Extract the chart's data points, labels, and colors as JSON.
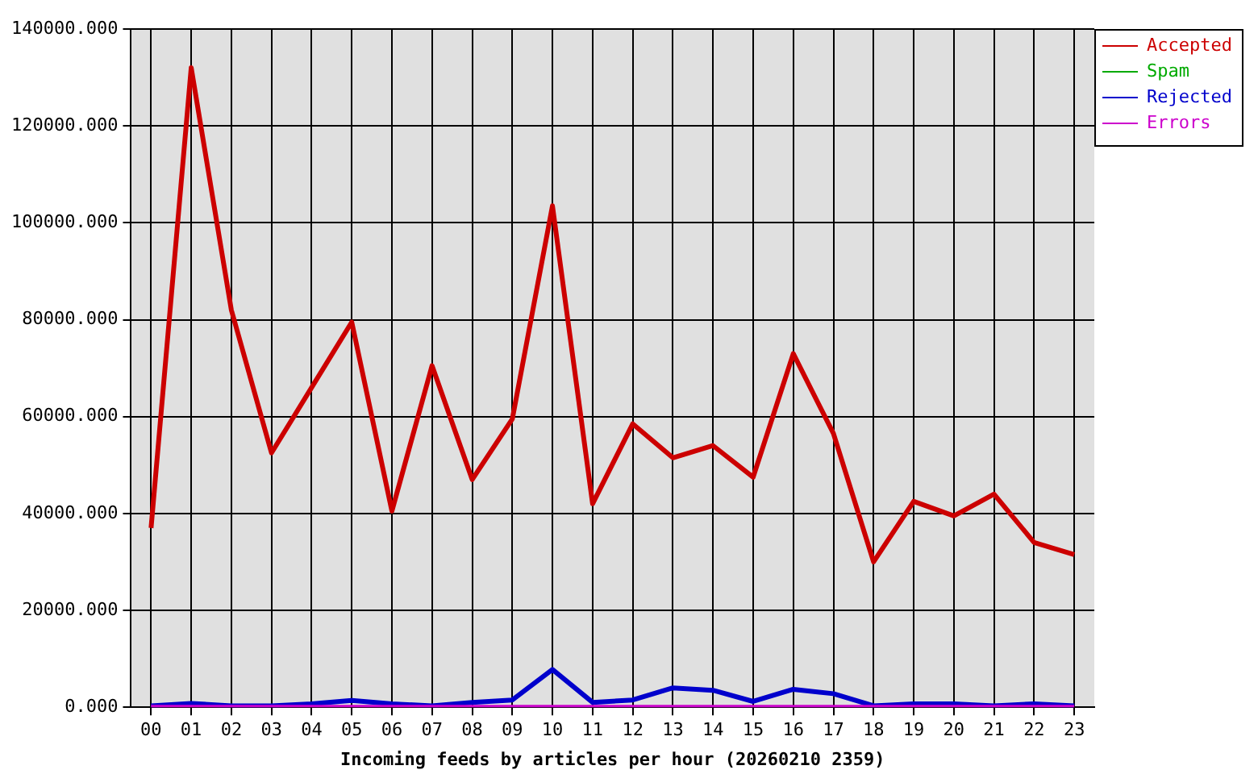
{
  "chart_data": {
    "type": "line",
    "xlabel": "Incoming feeds by articles per hour (20260210 2359)",
    "categories": [
      "00",
      "01",
      "02",
      "03",
      "04",
      "05",
      "06",
      "07",
      "08",
      "09",
      "10",
      "11",
      "12",
      "13",
      "14",
      "15",
      "16",
      "17",
      "18",
      "19",
      "20",
      "21",
      "22",
      "23"
    ],
    "series": [
      {
        "name": "Accepted",
        "color": "#cc0000",
        "values": [
          37000,
          132000,
          82000,
          52500,
          66000,
          79500,
          40500,
          70500,
          47000,
          59500,
          103500,
          42000,
          58500,
          51500,
          54000,
          47500,
          73000,
          56500,
          30000,
          42500,
          39500,
          44000,
          34000,
          31500
        ]
      },
      {
        "name": "Spam",
        "color": "#00aa00",
        "values": [
          null,
          null,
          null,
          null,
          null,
          null,
          null,
          null,
          null,
          null,
          null,
          null,
          null,
          null,
          null,
          null,
          null,
          null,
          null,
          null,
          null,
          null,
          null,
          null
        ]
      },
      {
        "name": "Rejected",
        "color": "#0000cc",
        "values": [
          300,
          800,
          300,
          300,
          700,
          1400,
          700,
          300,
          1000,
          1500,
          7800,
          1000,
          1500,
          4000,
          3500,
          1200,
          3700,
          2800,
          300,
          700,
          700,
          300,
          700,
          300
        ]
      },
      {
        "name": "Errors",
        "color": "#cc00cc",
        "values": [
          0,
          0,
          0,
          0,
          0,
          0,
          0,
          0,
          0,
          0,
          0,
          0,
          0,
          0,
          0,
          0,
          0,
          0,
          0,
          0,
          0,
          0,
          0,
          0
        ]
      }
    ],
    "ylim": [
      0,
      140000
    ],
    "yticks": [
      {
        "value": 0,
        "label": "0.000"
      },
      {
        "value": 20000,
        "label": "20000.000"
      },
      {
        "value": 40000,
        "label": "40000.000"
      },
      {
        "value": 60000,
        "label": "60000.000"
      },
      {
        "value": 80000,
        "label": "80000.000"
      },
      {
        "value": 100000,
        "label": "100000.000"
      },
      {
        "value": 120000,
        "label": "120000.000"
      },
      {
        "value": 140000,
        "label": "140000.000"
      }
    ],
    "grid": true,
    "legend": "top right",
    "marker": "none"
  }
}
